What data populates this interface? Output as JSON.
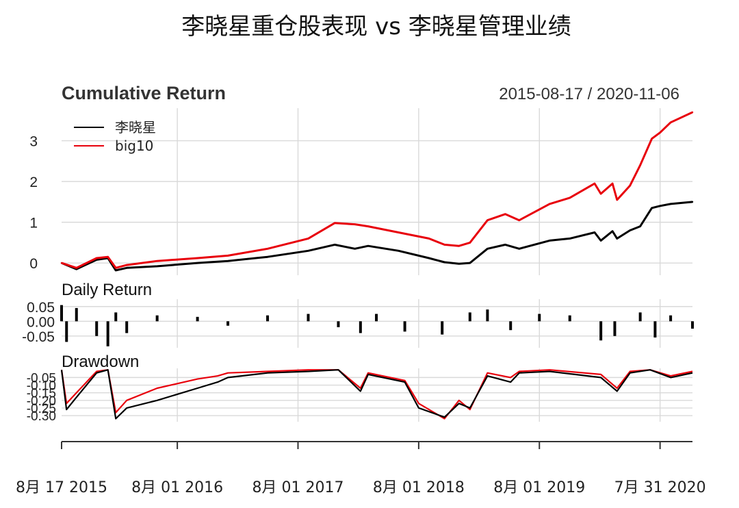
{
  "title": "李晓星重仓股表现 vs 李晓星管理业绩",
  "chart_data": [
    {
      "type": "line",
      "panel_title": "Cumulative Return",
      "date_range": "2015-08-17 / 2020-11-06",
      "x": [
        "2015-08-17",
        "2015-10-01",
        "2015-12-01",
        "2016-01-04",
        "2016-01-28",
        "2016-03-01",
        "2016-06-01",
        "2016-10-01",
        "2017-01-01",
        "2017-05-01",
        "2017-09-01",
        "2017-11-20",
        "2018-01-20",
        "2018-03-01",
        "2018-06-01",
        "2018-09-01",
        "2018-10-18",
        "2018-12-01",
        "2019-01-03",
        "2019-02-25",
        "2019-04-20",
        "2019-06-01",
        "2019-09-01",
        "2019-11-01",
        "2020-01-15",
        "2020-02-03",
        "2020-03-09",
        "2020-03-23",
        "2020-05-01",
        "2020-06-01",
        "2020-07-06",
        "2020-07-31",
        "2020-09-01",
        "2020-11-06"
      ],
      "series": [
        {
          "name": "李晓星",
          "color": "#000000",
          "values": [
            0.0,
            -0.15,
            0.08,
            0.12,
            -0.18,
            -0.12,
            -0.08,
            0.0,
            0.05,
            0.15,
            0.3,
            0.45,
            0.35,
            0.42,
            0.3,
            0.12,
            0.02,
            -0.02,
            0.0,
            0.35,
            0.45,
            0.35,
            0.55,
            0.6,
            0.75,
            0.55,
            0.78,
            0.6,
            0.8,
            0.9,
            1.35,
            1.4,
            1.45,
            1.5
          ]
        },
        {
          "name": "big10",
          "color": "#e8000b",
          "values": [
            0.0,
            -0.12,
            0.12,
            0.15,
            -0.12,
            -0.05,
            0.05,
            0.12,
            0.18,
            0.35,
            0.6,
            0.98,
            0.95,
            0.9,
            0.75,
            0.6,
            0.45,
            0.42,
            0.5,
            1.05,
            1.2,
            1.05,
            1.45,
            1.6,
            1.95,
            1.7,
            1.95,
            1.55,
            1.9,
            2.4,
            3.05,
            3.2,
            3.45,
            3.7
          ]
        }
      ],
      "y_ticks": [
        "0",
        "1",
        "2",
        "3"
      ],
      "ylim": [
        -0.3,
        3.8
      ],
      "legend": "top-left",
      "grid": true
    },
    {
      "type": "bar",
      "panel_title": "Daily Return",
      "x": [
        "2015-08-17",
        "2015-09-01",
        "2015-10-01",
        "2015-12-01",
        "2016-01-04",
        "2016-01-28",
        "2016-03-01",
        "2016-06-01",
        "2016-10-01",
        "2017-01-01",
        "2017-05-01",
        "2017-09-01",
        "2017-12-01",
        "2018-02-06",
        "2018-03-26",
        "2018-06-20",
        "2018-10-11",
        "2019-01-03",
        "2019-02-25",
        "2019-05-06",
        "2019-08-01",
        "2019-11-01",
        "2020-02-03",
        "2020-03-16",
        "2020-06-01",
        "2020-07-16",
        "2020-09-01",
        "2020-11-06"
      ],
      "values": [
        0.055,
        -0.07,
        0.045,
        -0.05,
        -0.085,
        0.03,
        -0.04,
        0.02,
        0.015,
        -0.015,
        0.02,
        0.025,
        -0.02,
        -0.04,
        0.025,
        -0.035,
        -0.045,
        0.03,
        0.04,
        -0.03,
        0.025,
        0.02,
        -0.065,
        -0.05,
        0.03,
        -0.055,
        0.02,
        -0.025
      ],
      "y_ticks": [
        "0.05",
        "0.00",
        "-0.05"
      ],
      "ylim": [
        -0.09,
        0.075
      ]
    },
    {
      "type": "line",
      "panel_title": "Drawdown",
      "x": [
        "2015-08-17",
        "2015-09-01",
        "2015-10-01",
        "2015-12-01",
        "2016-01-04",
        "2016-01-28",
        "2016-03-01",
        "2016-06-01",
        "2016-10-01",
        "2016-12-01",
        "2017-01-01",
        "2017-05-01",
        "2017-09-01",
        "2017-12-01",
        "2018-02-06",
        "2018-03-01",
        "2018-06-20",
        "2018-08-01",
        "2018-10-18",
        "2018-12-01",
        "2019-01-03",
        "2019-02-25",
        "2019-05-06",
        "2019-06-01",
        "2019-09-01",
        "2020-02-03",
        "2020-03-23",
        "2020-05-01",
        "2020-07-01",
        "2020-09-01",
        "2020-11-06"
      ],
      "series": [
        {
          "name": "李晓星",
          "color": "#000000",
          "values": [
            0.0,
            -0.26,
            -0.18,
            -0.02,
            0.0,
            -0.32,
            -0.25,
            -0.2,
            -0.12,
            -0.08,
            -0.05,
            -0.02,
            -0.01,
            0.0,
            -0.14,
            -0.03,
            -0.08,
            -0.25,
            -0.31,
            -0.22,
            -0.25,
            -0.04,
            -0.08,
            -0.02,
            -0.01,
            -0.05,
            -0.14,
            -0.02,
            0.0,
            -0.05,
            -0.02
          ]
        },
        {
          "name": "big10",
          "color": "#e8000b",
          "values": [
            0.0,
            -0.22,
            -0.15,
            -0.01,
            0.0,
            -0.28,
            -0.2,
            -0.12,
            -0.06,
            -0.04,
            -0.02,
            -0.01,
            0.0,
            0.0,
            -0.12,
            -0.02,
            -0.07,
            -0.22,
            -0.32,
            -0.2,
            -0.26,
            -0.02,
            -0.05,
            -0.01,
            0.0,
            -0.03,
            -0.12,
            -0.01,
            0.0,
            -0.04,
            -0.01
          ]
        }
      ],
      "y_ticks": [
        "-0.05",
        "-0.10",
        "-0.15",
        "-0.20",
        "-0.25",
        "-0.30"
      ],
      "ylim": [
        -0.34,
        0.01
      ]
    }
  ],
  "x_axis": {
    "tick_dates": [
      "2015-08-17",
      "2016-08-01",
      "2017-08-01",
      "2018-08-01",
      "2019-08-01",
      "2020-07-31"
    ],
    "tick_labels": [
      "8月 17 2015",
      "8月 01 2016",
      "8月 01 2017",
      "8月 01 2018",
      "8月 01 2019",
      "7月 31 2020"
    ],
    "end_date": "2020-11-06"
  }
}
